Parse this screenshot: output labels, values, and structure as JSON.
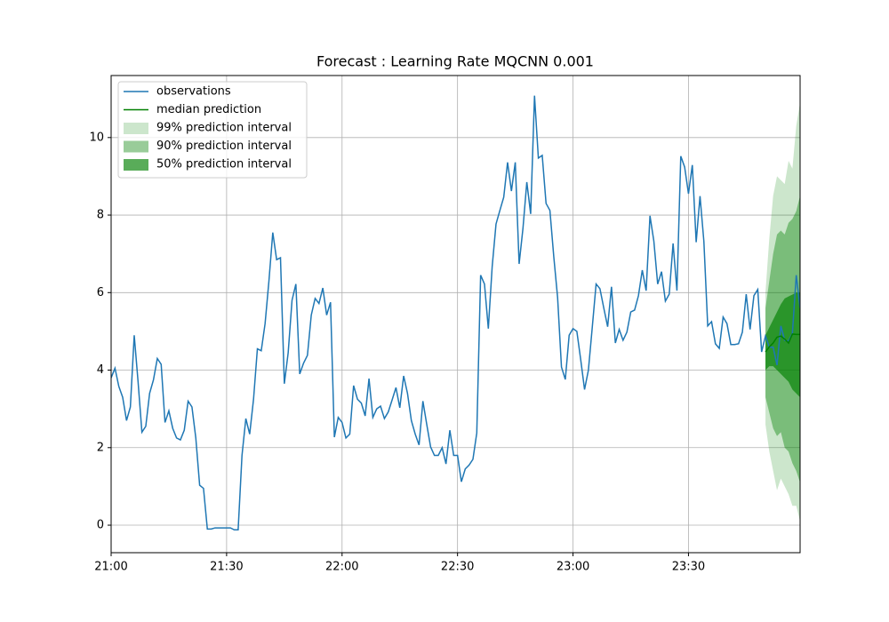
{
  "chart_data": {
    "type": "line",
    "title": "Forecast : Learning Rate MQCNN 0.001",
    "xlim": [
      "21:00",
      "23:59"
    ],
    "xticks": [
      "21:00",
      "21:30",
      "22:00",
      "22:30",
      "23:00",
      "23:30"
    ],
    "ylim": [
      -0.71,
      11.6
    ],
    "yticks": [
      0,
      2,
      4,
      6,
      8,
      10
    ],
    "grid": true,
    "legend": "upper left",
    "intervals": [
      {
        "name": "99% prediction interval",
        "color": "#008000",
        "alpha": 0.2,
        "x": [
          "23:50",
          "23:51",
          "23:52",
          "23:53",
          "23:54",
          "23:55",
          "23:56",
          "23:57",
          "23:58",
          "23:59"
        ],
        "upper": [
          6.0,
          7.4,
          8.5,
          9.0,
          8.9,
          8.8,
          9.4,
          9.2,
          10.3,
          10.9
        ],
        "lower": [
          2.6,
          1.9,
          1.4,
          0.9,
          1.2,
          1.0,
          0.8,
          0.5,
          0.5,
          0.1
        ]
      },
      {
        "name": "90% prediction interval",
        "color": "#008000",
        "alpha": 0.4,
        "x": [
          "23:50",
          "23:51",
          "23:52",
          "23:53",
          "23:54",
          "23:55",
          "23:56",
          "23:57",
          "23:58",
          "23:59"
        ],
        "upper": [
          5.6,
          6.3,
          7.0,
          7.5,
          7.6,
          7.5,
          7.8,
          7.9,
          8.1,
          8.5
        ],
        "lower": [
          3.3,
          2.9,
          2.5,
          2.3,
          2.4,
          2.0,
          1.9,
          1.6,
          1.4,
          1.1
        ]
      },
      {
        "name": "50% prediction interval",
        "color": "#008000",
        "alpha": 0.65,
        "x": [
          "23:50",
          "23:51",
          "23:52",
          "23:53",
          "23:54",
          "23:55",
          "23:56",
          "23:57",
          "23:58",
          "23:59"
        ],
        "upper": [
          4.9,
          5.1,
          5.3,
          5.5,
          5.7,
          5.85,
          5.9,
          5.95,
          6.0,
          6.0
        ],
        "lower": [
          4.0,
          4.1,
          4.1,
          4.0,
          3.9,
          3.8,
          3.7,
          3.5,
          3.4,
          3.3
        ]
      }
    ],
    "series": [
      {
        "name": "observations",
        "color": "#1f77b4",
        "x": [
          "21:00",
          "21:01",
          "21:02",
          "21:03",
          "21:04",
          "21:05",
          "21:06",
          "21:07",
          "21:08",
          "21:09",
          "21:10",
          "21:11",
          "21:12",
          "21:13",
          "21:14",
          "21:15",
          "21:16",
          "21:17",
          "21:18",
          "21:19",
          "21:20",
          "21:21",
          "21:22",
          "21:23",
          "21:24",
          "21:25",
          "21:26",
          "21:27",
          "21:28",
          "21:29",
          "21:30",
          "21:31",
          "21:32",
          "21:33",
          "21:34",
          "21:35",
          "21:36",
          "21:37",
          "21:38",
          "21:39",
          "21:40",
          "21:41",
          "21:42",
          "21:43",
          "21:44",
          "21:45",
          "21:46",
          "21:47",
          "21:48",
          "21:49",
          "21:50",
          "21:51",
          "21:52",
          "21:53",
          "21:54",
          "21:55",
          "21:56",
          "21:57",
          "21:58",
          "21:59",
          "22:00",
          "22:01",
          "22:02",
          "22:03",
          "22:04",
          "22:05",
          "22:06",
          "22:07",
          "22:08",
          "22:09",
          "22:10",
          "22:11",
          "22:12",
          "22:13",
          "22:14",
          "22:15",
          "22:16",
          "22:17",
          "22:18",
          "22:19",
          "22:20",
          "22:21",
          "22:22",
          "22:23",
          "22:24",
          "22:25",
          "22:26",
          "22:27",
          "22:28",
          "22:29",
          "22:30",
          "22:31",
          "22:32",
          "22:33",
          "22:34",
          "22:35",
          "22:36",
          "22:37",
          "22:38",
          "22:39",
          "22:40",
          "22:41",
          "22:42",
          "22:43",
          "22:44",
          "22:45",
          "22:46",
          "22:47",
          "22:48",
          "22:49",
          "22:50",
          "22:51",
          "22:52",
          "22:53",
          "22:54",
          "22:55",
          "22:56",
          "22:57",
          "22:58",
          "22:59",
          "23:00",
          "23:01",
          "23:02",
          "23:03",
          "23:04",
          "23:05",
          "23:06",
          "23:07",
          "23:08",
          "23:09",
          "23:10",
          "23:11",
          "23:12",
          "23:13",
          "23:14",
          "23:15",
          "23:16",
          "23:17",
          "23:18",
          "23:19",
          "23:20",
          "23:21",
          "23:22",
          "23:23",
          "23:24",
          "23:25",
          "23:26",
          "23:27",
          "23:28",
          "23:29",
          "23:30",
          "23:31",
          "23:32",
          "23:33",
          "23:34",
          "23:35",
          "23:36",
          "23:37",
          "23:38",
          "23:39",
          "23:40",
          "23:41",
          "23:42",
          "23:43",
          "23:44",
          "23:45",
          "23:46",
          "23:47",
          "23:48",
          "23:49",
          "23:50",
          "23:51",
          "23:52",
          "23:53",
          "23:54",
          "23:55",
          "23:56",
          "23:57",
          "23:58",
          "23:59"
        ],
        "values": [
          3.8,
          4.05,
          3.58,
          3.3,
          2.7,
          3.05,
          4.9,
          3.7,
          2.4,
          2.55,
          3.4,
          3.75,
          4.3,
          4.15,
          2.65,
          2.95,
          2.5,
          2.25,
          2.2,
          2.45,
          3.2,
          3.05,
          2.25,
          1.03,
          0.95,
          -0.1,
          -0.1,
          -0.07,
          -0.07,
          -0.07,
          -0.07,
          -0.07,
          -0.12,
          -0.12,
          1.8,
          2.75,
          2.35,
          3.25,
          4.55,
          4.5,
          5.2,
          6.3,
          7.55,
          6.85,
          6.9,
          3.65,
          4.45,
          5.8,
          6.22,
          3.9,
          4.18,
          4.38,
          5.42,
          5.85,
          5.72,
          6.12,
          5.42,
          5.75,
          2.27,
          2.78,
          2.65,
          2.25,
          2.35,
          3.6,
          3.25,
          3.15,
          2.82,
          3.78,
          2.78,
          3.0,
          3.07,
          2.75,
          2.92,
          3.23,
          3.55,
          3.03,
          3.85,
          3.4,
          2.7,
          2.35,
          2.07,
          3.2,
          2.6,
          2.02,
          1.8,
          1.8,
          2.0,
          1.58,
          2.45,
          1.8,
          1.8,
          1.12,
          1.45,
          1.55,
          1.7,
          2.38,
          6.45,
          6.22,
          5.07,
          6.67,
          7.77,
          8.12,
          8.46,
          9.36,
          8.62,
          9.36,
          6.74,
          7.66,
          8.85,
          8.03,
          11.08,
          9.47,
          9.54,
          8.3,
          8.12,
          6.93,
          5.87,
          4.08,
          3.76,
          4.9,
          5.07,
          5.0,
          4.27,
          3.5,
          4.0,
          5.1,
          6.22,
          6.1,
          5.6,
          5.12,
          6.15,
          4.7,
          5.05,
          4.77,
          4.98,
          5.5,
          5.55,
          5.92,
          6.58,
          6.05,
          7.98,
          7.33,
          6.22,
          6.54,
          5.78,
          5.96,
          7.27,
          6.05,
          9.52,
          9.24,
          8.55,
          9.29,
          7.3,
          8.49,
          7.32,
          5.14,
          5.25,
          4.68,
          4.56,
          5.37,
          5.2,
          4.66,
          4.66,
          4.68,
          4.98,
          5.96,
          5.05,
          5.92,
          6.08,
          4.47,
          4.88,
          4.59,
          4.59,
          4.13,
          5.14,
          4.77,
          4.75,
          4.95,
          6.45,
          5.6
        ]
      },
      {
        "name": "median prediction",
        "color": "#008000",
        "x": [
          "23:50",
          "23:51",
          "23:52",
          "23:53",
          "23:54",
          "23:55",
          "23:56",
          "23:57",
          "23:58",
          "23:59"
        ],
        "values": [
          4.47,
          4.6,
          4.7,
          4.85,
          4.88,
          4.8,
          4.7,
          4.93,
          4.92,
          4.92
        ]
      }
    ]
  }
}
